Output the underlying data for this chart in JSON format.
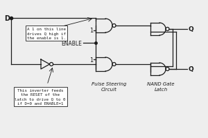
{
  "bg_color": "#eeeeee",
  "line_color": "#1a1a1a",
  "annotation1": "A 1 on this line\ndrives Q high if\nthe enable is 1.",
  "annotation2": "This inverter feeds\nthe RESET of the\nlatch to drive Q to 0\nif D=0 and ENABLE=1",
  "label_enable": "ENABLE",
  "label_D": "D",
  "label_Q": "Q",
  "label_Qbar": "Q̄",
  "label_PSC": "Pulse Steering\nCircuit",
  "label_NGL": "NAND Gate\nLatch",
  "label_1a": "1",
  "label_1b": "1"
}
